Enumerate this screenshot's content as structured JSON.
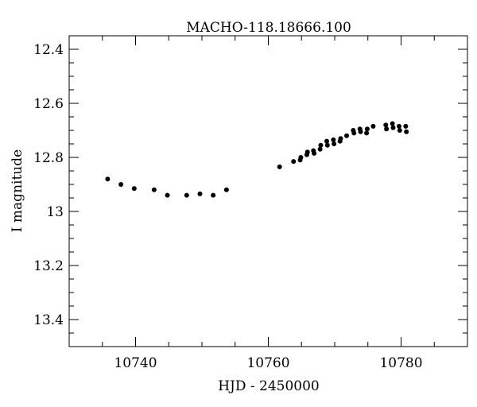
{
  "chart_data": {
    "type": "scatter",
    "title": "MACHO-118.18666.100",
    "xlabel": "HJD - 2450000",
    "ylabel": "I magnitude",
    "xlim": [
      10730,
      10790
    ],
    "ylim": [
      13.5,
      12.35
    ],
    "y_inverted": true,
    "x_major_ticks": [
      10740,
      10760,
      10780
    ],
    "x_tick_labels": [
      "10740",
      "10760",
      "10780"
    ],
    "x_minor_step": 5,
    "y_major_ticks": [
      12.4,
      12.6,
      12.8,
      13.0,
      13.2,
      13.4
    ],
    "y_tick_labels": [
      "12.4",
      "12.6",
      "12.8",
      "13",
      "13.2",
      "13.4"
    ],
    "y_minor_step": 0.05,
    "grid": false,
    "legend": "none",
    "marker_color": "#000000",
    "series": [
      {
        "x": [
          10735.8,
          10737.8,
          10739.8,
          10742.8,
          10744.8,
          10747.7,
          10749.7,
          10751.7,
          10753.7,
          10761.7,
          10763.8,
          10764.8,
          10764.9,
          10765.8,
          10765.9,
          10766.8,
          10766.9,
          10767.8,
          10767.9,
          10768.8,
          10768.9,
          10769.8,
          10769.9,
          10770.8,
          10770.9,
          10771.8,
          10772.8,
          10772.9,
          10773.8,
          10773.9,
          10774.8,
          10774.9,
          10775.8,
          10777.7,
          10777.8,
          10778.7,
          10778.8,
          10779.7,
          10779.8,
          10780.7,
          10780.8
        ],
        "y": [
          12.88,
          12.9,
          12.915,
          12.92,
          12.94,
          12.94,
          12.935,
          12.94,
          12.92,
          12.835,
          12.815,
          12.81,
          12.8,
          12.79,
          12.78,
          12.775,
          12.785,
          12.77,
          12.755,
          12.74,
          12.755,
          12.735,
          12.75,
          12.74,
          12.73,
          12.72,
          12.7,
          12.71,
          12.695,
          12.705,
          12.71,
          12.695,
          12.685,
          12.68,
          12.695,
          12.675,
          12.69,
          12.685,
          12.7,
          12.685,
          12.705
        ]
      }
    ]
  }
}
